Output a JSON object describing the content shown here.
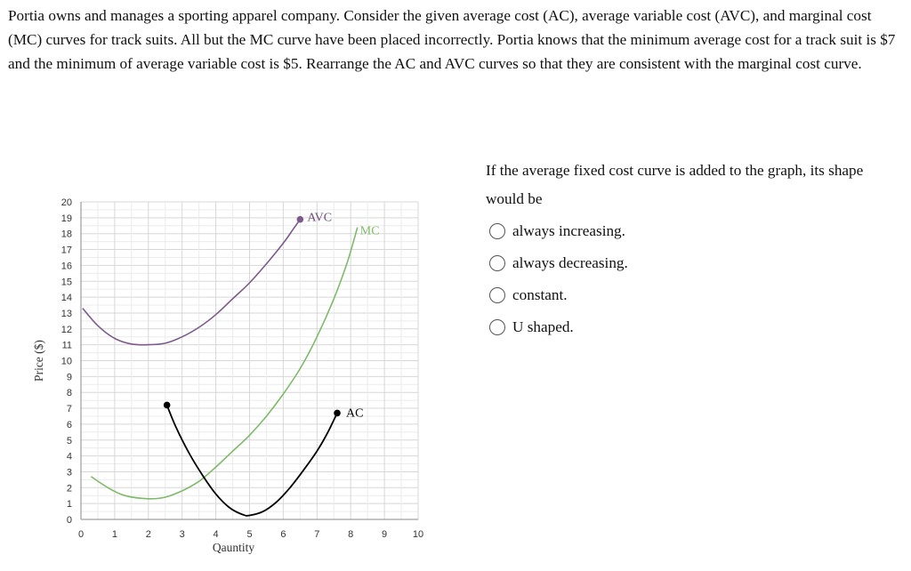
{
  "question": {
    "text": "Portia owns and manages a sporting apparel company. Consider the given average cost (AC), average variable cost (AVC), and marginal cost (MC) curves for track suits. All but the MC curve have been placed incorrectly. Portia knows that the minimum average cost for a track suit is $7 and the minimum of average variable cost is $5. Rearrange the AC and AVC curves so that they are consistent with the marginal cost curve."
  },
  "side_question": {
    "prompt": "If the average fixed cost curve is added to the graph, its shape would be",
    "options": [
      {
        "label": "always increasing."
      },
      {
        "label": "always decreasing."
      },
      {
        "label": "constant."
      },
      {
        "label": "U shaped."
      }
    ]
  },
  "chart_data": {
    "type": "line",
    "xlabel": "Qauntity",
    "ylabel": "Price ($)",
    "xlim": [
      0,
      10
    ],
    "ylim": [
      0,
      20
    ],
    "x_ticks": [
      "0",
      "1",
      "2",
      "3",
      "4",
      "5",
      "6",
      "7",
      "8",
      "9",
      "10"
    ],
    "y_ticks": [
      "0",
      "1",
      "2",
      "3",
      "4",
      "5",
      "6",
      "7",
      "8",
      "9",
      "10",
      "11",
      "12",
      "13",
      "14",
      "15",
      "16",
      "17",
      "18",
      "19",
      "20"
    ],
    "grid": true,
    "series": [
      {
        "name": "AVC",
        "color": "#7d5a8c",
        "endpoint_marker": "end",
        "points": [
          [
            0.05,
            13.3
          ],
          [
            0.5,
            12.2
          ],
          [
            1.0,
            11.4
          ],
          [
            1.5,
            11.05
          ],
          [
            2.0,
            11.0
          ],
          [
            2.5,
            11.1
          ],
          [
            3.0,
            11.5
          ],
          [
            3.5,
            12.1
          ],
          [
            4.0,
            12.9
          ],
          [
            4.5,
            13.9
          ],
          [
            5.0,
            14.9
          ],
          [
            5.5,
            16.1
          ],
          [
            6.0,
            17.4
          ],
          [
            6.3,
            18.3
          ],
          [
            6.5,
            18.9
          ]
        ]
      },
      {
        "name": "MC",
        "color": "#7fba6a",
        "endpoint_marker": "none",
        "points": [
          [
            0.3,
            2.7
          ],
          [
            0.8,
            2.0
          ],
          [
            1.3,
            1.5
          ],
          [
            2.0,
            1.3
          ],
          [
            2.5,
            1.4
          ],
          [
            3.0,
            1.8
          ],
          [
            3.5,
            2.4
          ],
          [
            4.0,
            3.3
          ],
          [
            4.5,
            4.3
          ],
          [
            5.0,
            5.3
          ],
          [
            5.5,
            6.5
          ],
          [
            6.0,
            7.9
          ],
          [
            6.5,
            9.5
          ],
          [
            7.0,
            11.5
          ],
          [
            7.5,
            13.9
          ],
          [
            7.9,
            16.2
          ],
          [
            8.2,
            18.4
          ]
        ]
      },
      {
        "name": "AC",
        "color": "#000000",
        "endpoint_marker": "both",
        "points": [
          [
            2.55,
            7.2
          ],
          [
            2.8,
            5.9
          ],
          [
            3.2,
            4.2
          ],
          [
            3.6,
            2.8
          ],
          [
            4.0,
            1.6
          ],
          [
            4.4,
            0.75
          ],
          [
            4.8,
            0.3
          ],
          [
            5.0,
            0.25
          ],
          [
            5.4,
            0.5
          ],
          [
            5.8,
            1.1
          ],
          [
            6.2,
            2.0
          ],
          [
            6.6,
            3.1
          ],
          [
            7.0,
            4.3
          ],
          [
            7.3,
            5.4
          ],
          [
            7.6,
            6.7
          ]
        ]
      }
    ]
  }
}
